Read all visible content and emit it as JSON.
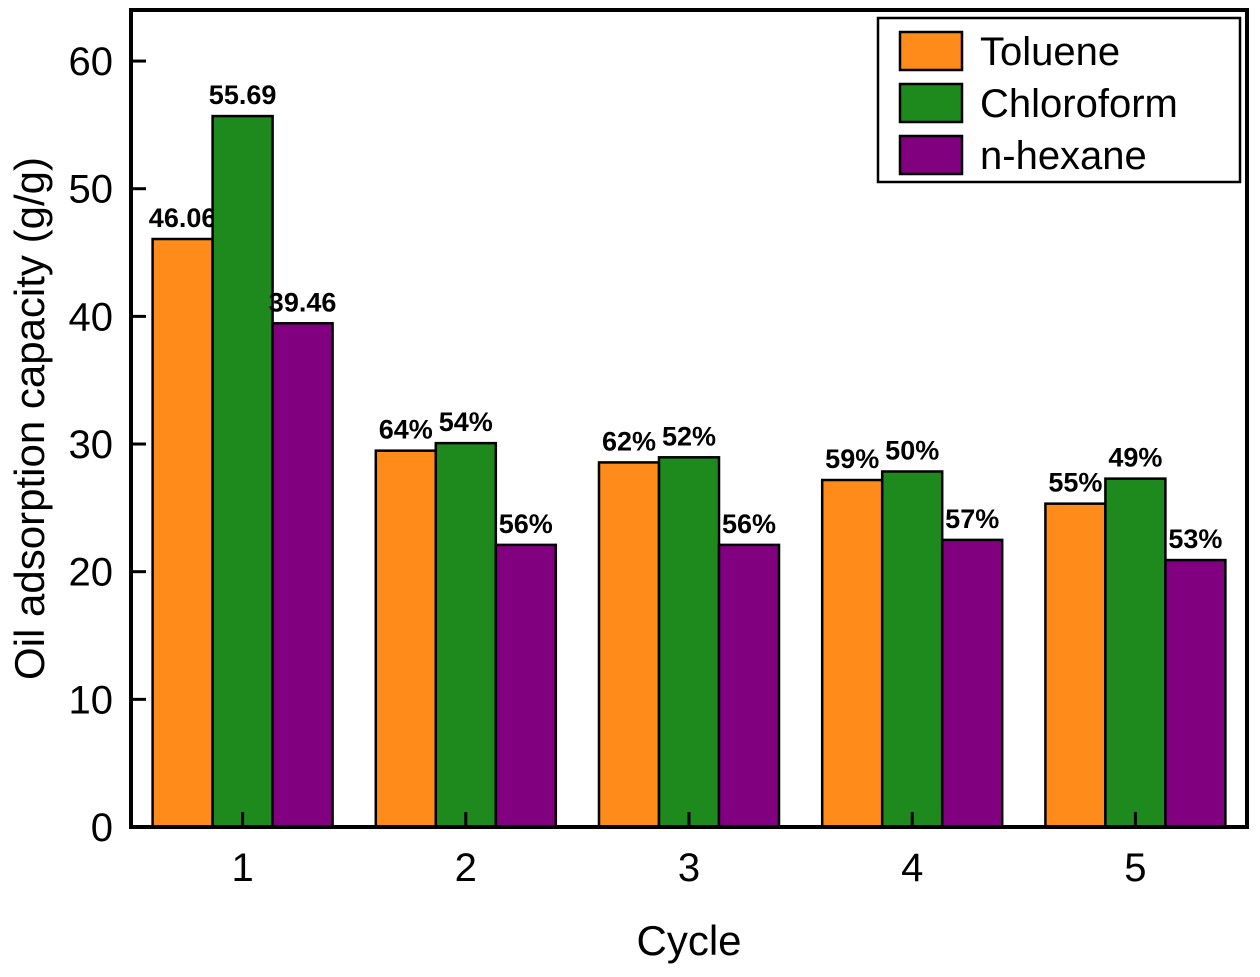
{
  "chart_data": {
    "type": "bar",
    "title": "",
    "xlabel": "Cycle",
    "ylabel": "Oil adsorption capacity (g/g)",
    "categories": [
      "1",
      "2",
      "3",
      "4",
      "5"
    ],
    "ylim": [
      0,
      64
    ],
    "yticks": [
      0,
      10,
      20,
      30,
      40,
      50,
      60
    ],
    "grid": false,
    "legend_position": "top-right",
    "colors": {
      "axis": "#000000",
      "background": "#ffffff",
      "toluene": "#FF8C1A",
      "chloroform": "#1E8A1E",
      "n_hexane": "#800080"
    },
    "series": [
      {
        "name": "Toluene",
        "color": "#FF8C1A",
        "values": [
          46.06,
          29.48,
          28.56,
          27.18,
          25.33
        ],
        "labels": [
          "46.06",
          "64%",
          "62%",
          "59%",
          "55%"
        ]
      },
      {
        "name": "Chloroform",
        "color": "#1E8A1E",
        "values": [
          55.69,
          30.07,
          28.96,
          27.85,
          27.29
        ],
        "labels": [
          "55.69",
          "54%",
          "52%",
          "50%",
          "49%"
        ]
      },
      {
        "name": "n-hexane",
        "color": "#800080",
        "values": [
          39.46,
          22.1,
          22.1,
          22.49,
          20.91
        ],
        "labels": [
          "39.46",
          "56%",
          "56%",
          "57%",
          "53%"
        ]
      }
    ]
  }
}
